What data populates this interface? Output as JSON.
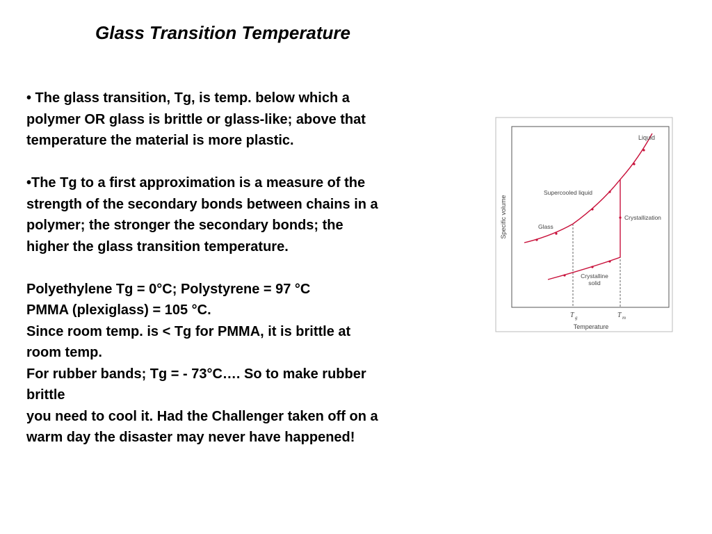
{
  "slide": {
    "title": "Glass Transition Temperature",
    "paragraph1": [
      "• The glass transition, Tg, is temp. below which a",
      "polymer OR glass is brittle or glass-like; above that",
      "temperature the material is more plastic."
    ],
    "paragraph2": [
      "•The Tg to a first approximation is a measure of the",
      "strength of the secondary bonds between chains in a",
      "polymer; the stronger the secondary bonds; the",
      "higher the glass transition temperature."
    ],
    "paragraph3": [
      "Polyethylene Tg = 0°C; Polystyrene = 97 °C",
      "PMMA (plexiglass) = 105 °C.",
      "Since room temp. is < Tg for PMMA, it is brittle at",
      "room temp.",
      "For rubber bands; Tg = - 73°C…. So to make rubber",
      "brittle",
      "you need to cool it. Had the Challenger taken off on a",
      "warm day the disaster may never have happened!"
    ]
  },
  "figure": {
    "y_axis_label": "Specific volume",
    "x_axis_label": "Temperature",
    "tick_tg": "T",
    "tick_tg_sub": "g",
    "tick_tm": "T",
    "tick_tm_sub": "m",
    "labels": {
      "liquid": "Liquid",
      "supercooled": "Supercooled liquid",
      "glass": "Glass",
      "crystallization": "Crystallization",
      "crystalline_line1": "Crystalline",
      "crystalline_line2": "solid"
    },
    "colors": {
      "curve": "#c8103a",
      "frame": "#555555",
      "dashed": "#666666"
    }
  }
}
